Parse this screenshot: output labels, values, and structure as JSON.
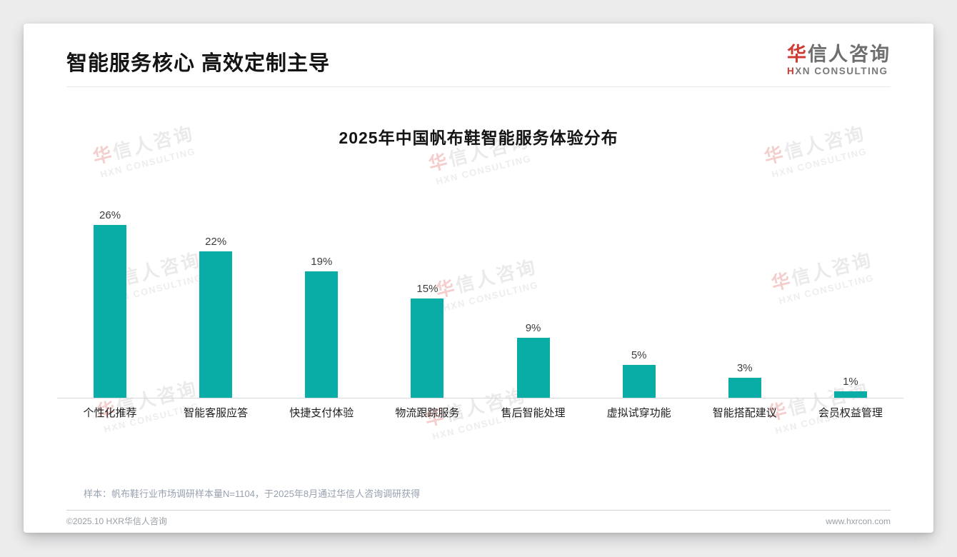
{
  "header": {
    "title": "智能服务核心 高效定制主导"
  },
  "logo": {
    "cn_first": "华",
    "cn_rest": "信人咨询",
    "en_first": "H",
    "en_rest": "XN CONSULTING"
  },
  "watermark": {
    "cn_first": "华",
    "cn_rest": "信人咨询",
    "en": "HXN CONSULTING"
  },
  "chart_data": {
    "type": "bar",
    "title": "2025年中国帆布鞋智能服务体验分布",
    "categories": [
      "个性化推荐",
      "智能客服应答",
      "快捷支付体验",
      "物流跟踪服务",
      "售后智能处理",
      "虚拟试穿功能",
      "智能搭配建议",
      "会员权益管理"
    ],
    "values": [
      26,
      22,
      19,
      15,
      9,
      5,
      3,
      1
    ],
    "value_labels": [
      "26%",
      "22%",
      "19%",
      "15%",
      "9%",
      "5%",
      "3%",
      "1%"
    ],
    "unit": "%",
    "xlabel": "",
    "ylabel": "",
    "ylim": [
      0,
      28
    ],
    "grid": false,
    "legend": "none",
    "bar_color": "#0aaca6"
  },
  "colors": {
    "accent_red": "#cf3a32",
    "bar_teal": "#0aaca6",
    "page_background": "#ececed",
    "card_background": "#ffffff"
  },
  "footer": {
    "note": "样本：帆布鞋行业市场调研样本量N=1104，于2025年8月通过华信人咨询调研获得",
    "copyright": "©2025.10 HXR华信人咨询",
    "website": "www.hxrcon.com"
  }
}
